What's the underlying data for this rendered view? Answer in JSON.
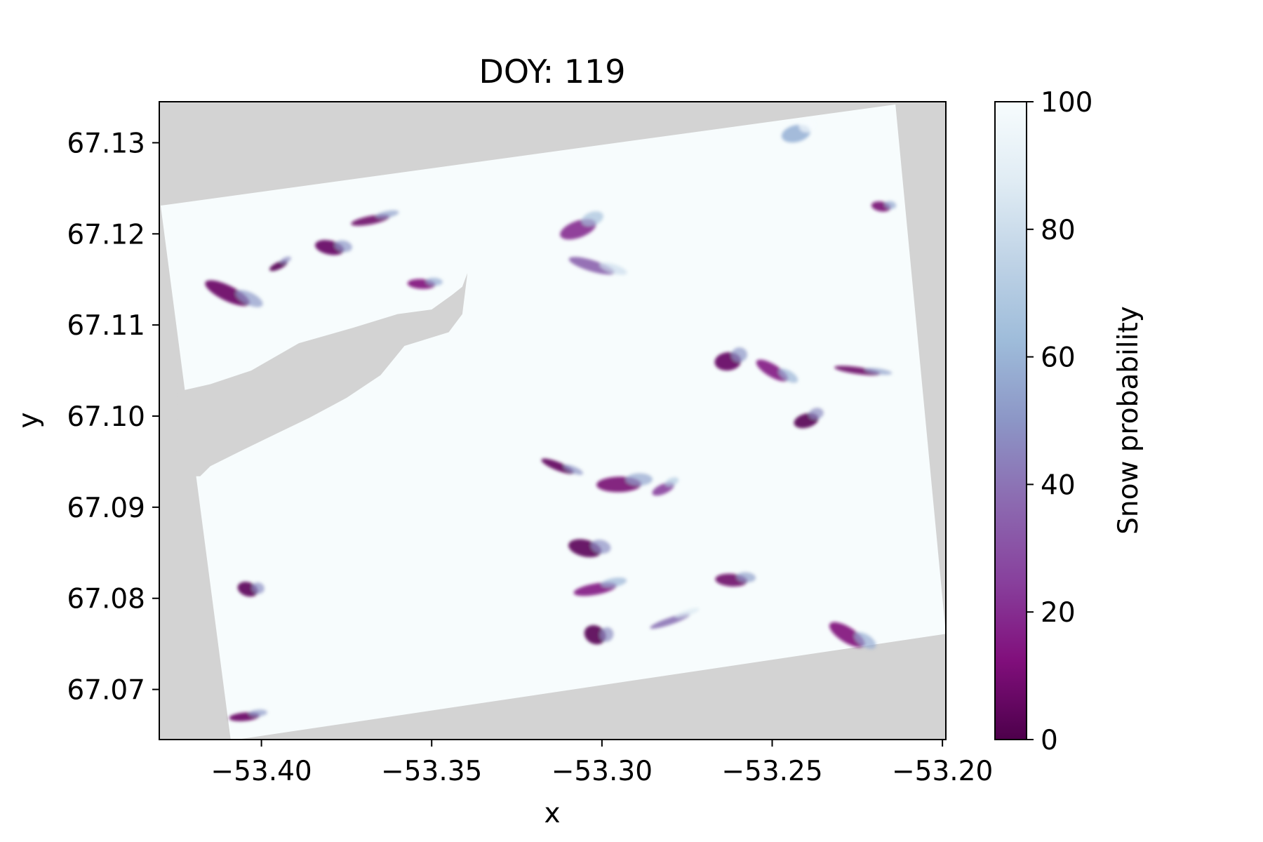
{
  "chart_data": {
    "type": "heatmap",
    "title": "DOY: 119",
    "xlabel": "x",
    "ylabel": "y",
    "xlim": [
      -53.43,
      -53.199
    ],
    "ylim": [
      67.0645,
      67.1345
    ],
    "x_ticks": [
      -53.4,
      -53.35,
      -53.3,
      -53.25,
      -53.2
    ],
    "x_tick_labels": [
      "−53.40",
      "−53.35",
      "−53.30",
      "−53.25",
      "−53.20"
    ],
    "y_ticks": [
      67.07,
      67.08,
      67.09,
      67.1,
      67.11,
      67.12,
      67.13
    ],
    "y_tick_labels": [
      "67.07",
      "67.08",
      "67.09",
      "67.10",
      "67.11",
      "67.12",
      "67.13"
    ],
    "colorbar": {
      "label": "Snow probability",
      "range": [
        0,
        100
      ],
      "ticks": [
        0,
        20,
        40,
        60,
        80,
        100
      ],
      "tick_labels": [
        "0",
        "20",
        "40",
        "60",
        "80",
        "100"
      ],
      "colormap": "BuPu_r",
      "colors": [
        "#4d004b",
        "#810f7c",
        "#88419d",
        "#8c6bb1",
        "#8c96c6",
        "#9ebcda",
        "#bfd3e6",
        "#e0ecf4",
        "#f7fcfd"
      ]
    },
    "nodata_color": "#d3d3d3",
    "background_snow_probability": 100,
    "swath_corners": [
      [
        -53.4296,
        67.1231
      ],
      [
        -53.2138,
        67.1342
      ],
      [
        -53.199,
        67.0761
      ],
      [
        -53.409,
        67.0644
      ]
    ],
    "nodata_region": [
      [
        -53.4245,
        67.1027
      ],
      [
        -53.415,
        67.1035
      ],
      [
        -53.403,
        67.105
      ],
      [
        -53.389,
        67.108
      ],
      [
        -53.373,
        67.1097
      ],
      [
        -53.36,
        67.1112
      ],
      [
        -53.35,
        67.1117
      ],
      [
        -53.344,
        67.1133
      ],
      [
        -53.341,
        67.1142
      ],
      [
        -53.3395,
        67.1157
      ],
      [
        -53.341,
        67.1112
      ],
      [
        -53.345,
        67.1092
      ],
      [
        -53.358,
        67.1077
      ],
      [
        -53.365,
        67.1045
      ],
      [
        -53.375,
        67.102
      ],
      [
        -53.386,
        67.0998
      ],
      [
        -53.396,
        67.098
      ],
      [
        -53.407,
        67.096
      ],
      [
        -53.415,
        67.0945
      ],
      [
        -53.418,
        67.0934
      ],
      [
        -53.425,
        67.0934
      ]
    ],
    "low_probability_patches": [
      {
        "x": -53.395,
        "y": 67.1165,
        "value": 2
      },
      {
        "x": -53.38,
        "y": 67.1185,
        "value": 5
      },
      {
        "x": -53.368,
        "y": 67.1215,
        "value": 8
      },
      {
        "x": -53.41,
        "y": 67.1135,
        "value": 6
      },
      {
        "x": -53.353,
        "y": 67.1145,
        "value": 12
      },
      {
        "x": -53.307,
        "y": 67.1205,
        "value": 20
      },
      {
        "x": -53.303,
        "y": 67.1165,
        "value": 35
      },
      {
        "x": -53.263,
        "y": 67.106,
        "value": 5
      },
      {
        "x": -53.25,
        "y": 67.105,
        "value": 15
      },
      {
        "x": -53.225,
        "y": 67.105,
        "value": 8
      },
      {
        "x": -53.24,
        "y": 67.0995,
        "value": 2
      },
      {
        "x": -53.313,
        "y": 67.0945,
        "value": 4
      },
      {
        "x": -53.295,
        "y": 67.0925,
        "value": 10
      },
      {
        "x": -53.282,
        "y": 67.092,
        "value": 25
      },
      {
        "x": -53.305,
        "y": 67.0855,
        "value": 3
      },
      {
        "x": -53.302,
        "y": 67.081,
        "value": 15
      },
      {
        "x": -53.302,
        "y": 67.076,
        "value": 2
      },
      {
        "x": -53.262,
        "y": 67.082,
        "value": 8
      },
      {
        "x": -53.28,
        "y": 67.0775,
        "value": 40
      },
      {
        "x": -53.404,
        "y": 67.081,
        "value": 3
      },
      {
        "x": -53.405,
        "y": 67.067,
        "value": 6
      },
      {
        "x": -53.228,
        "y": 67.076,
        "value": 12
      },
      {
        "x": -53.218,
        "y": 67.123,
        "value": 10
      },
      {
        "x": -53.243,
        "y": 67.131,
        "value": 60
      }
    ]
  }
}
